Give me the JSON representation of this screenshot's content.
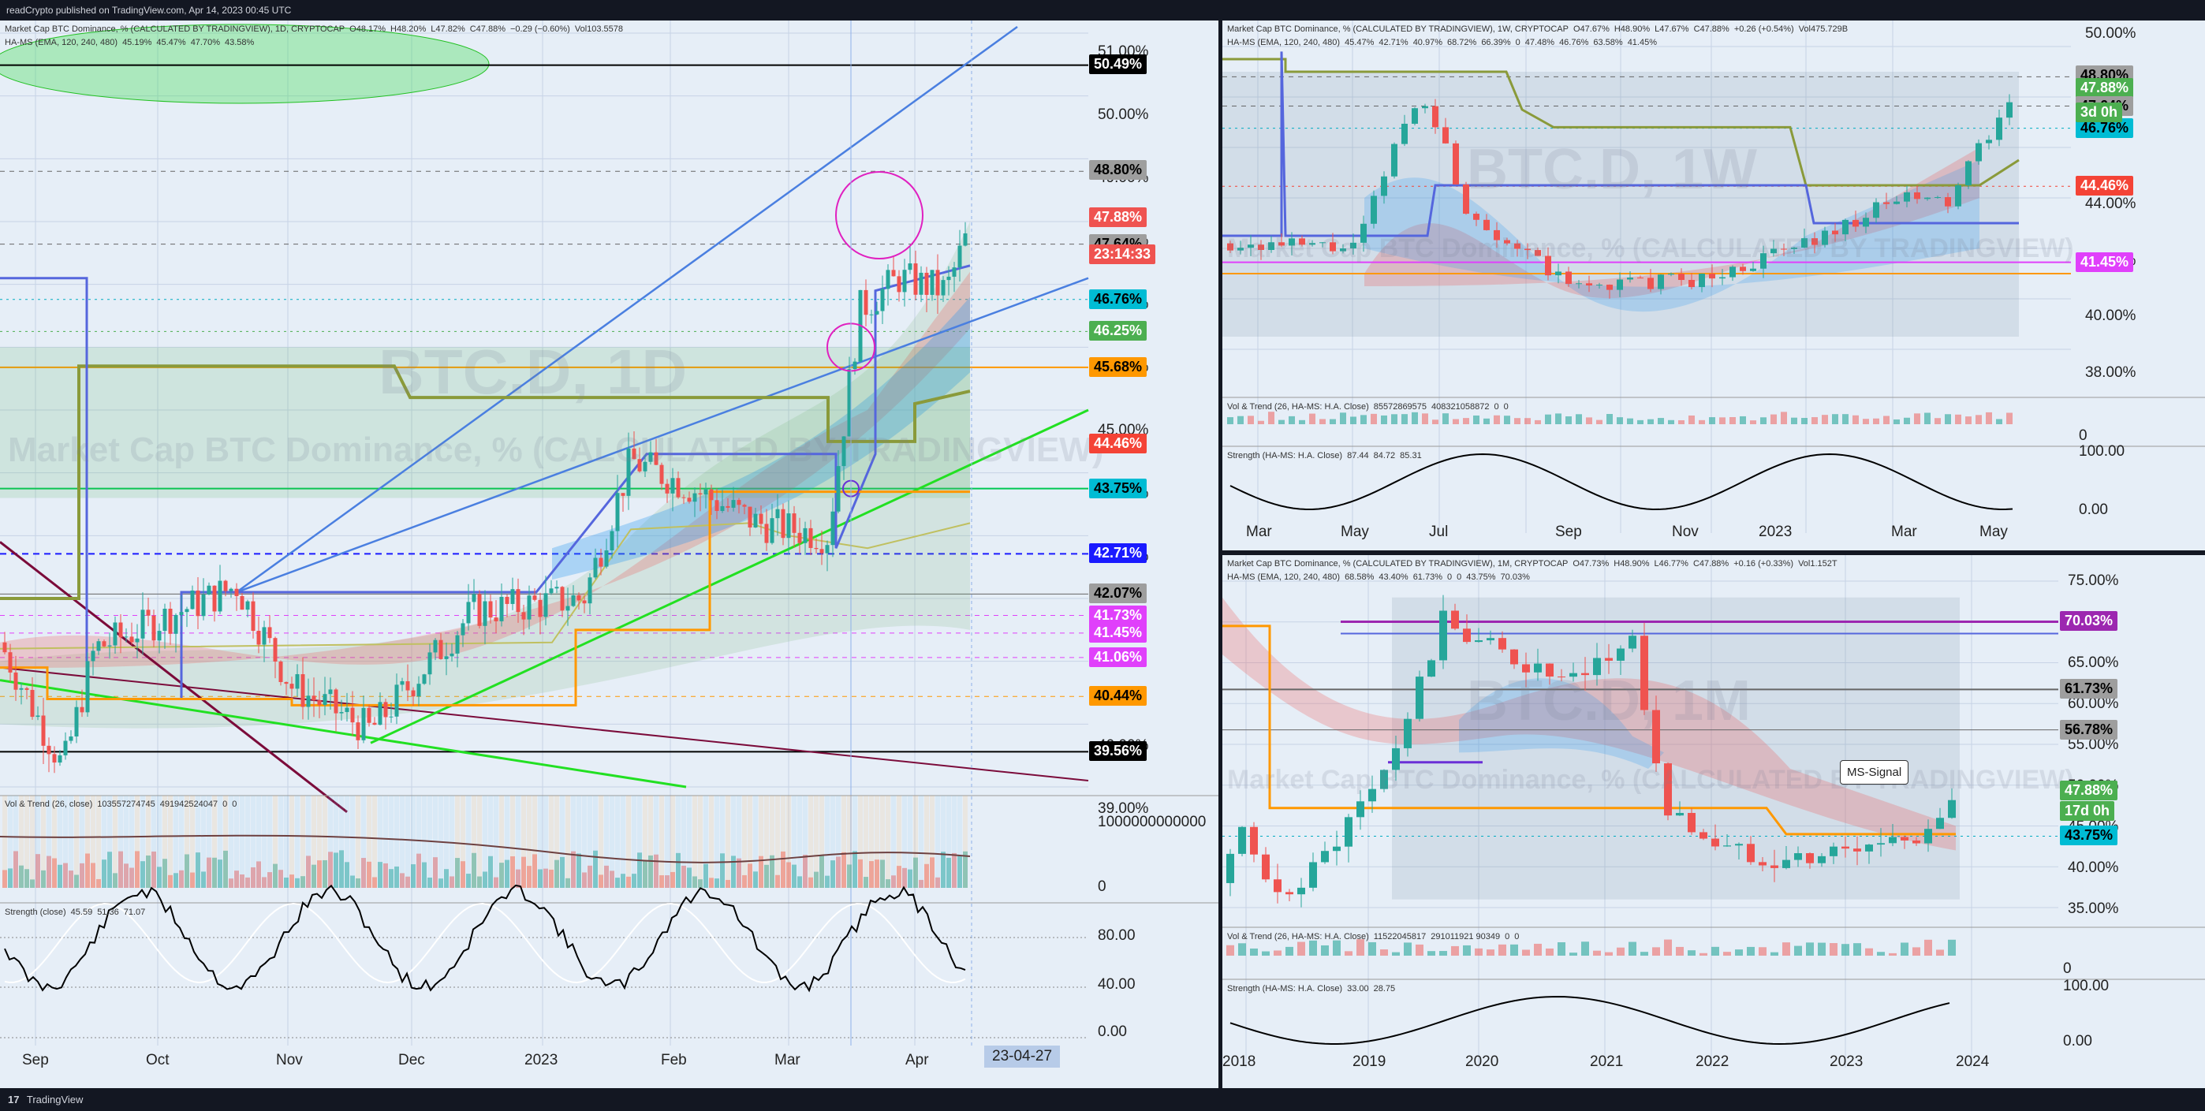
{
  "header": {
    "text": "readCrypto published on TradingView.com, Apr 14, 2023 00:45 UTC"
  },
  "footer": {
    "brand": "TradingView",
    "logo": "17"
  },
  "colors": {
    "bg": "#e6eef7",
    "grid": "#c7d3e6",
    "up": "#26a69a",
    "down": "#ef5350",
    "blue": "#4a7fe0",
    "green": "#22e022",
    "orange": "#ff9800",
    "olive": "#8a9a3a",
    "magenta": "#e040fb",
    "maroon": "#7b0b3a",
    "purple": "#6a2fd6"
  },
  "daily": {
    "legend1": [
      "Market Cap BTC Dominance, % (CALCULATED BY TRADINGVIEW), 1D, CRYPTOCAP",
      "O48.17%",
      "H48.20%",
      "L47.82%",
      "C47.88%",
      "−0.29 (−0.60%)",
      "Vol103.5578"
    ],
    "legend2": [
      "HA-MS (EMA, 120, 240, 480)",
      "45.19%",
      "45.47%",
      "47.70%",
      "43.58%"
    ],
    "watermark": "BTC.D, 1D",
    "watermark2": "Market Cap BTC Dominance, % (CALCULATED BY TRADINGVIEW)",
    "y_ticks": [
      "51.00%",
      "50.00%",
      "49.00%",
      "48.00%",
      "47.00%",
      "46.00%",
      "45.00%",
      "44.00%",
      "43.00%",
      "40.00%",
      "39.00%"
    ],
    "x_ticks": [
      "Sep",
      "Oct",
      "Nov",
      "Dec",
      "2023",
      "Feb",
      "Mar",
      "Apr"
    ],
    "date_tag": "23-04-27",
    "countdown": "23:14:33",
    "price_tags": [
      {
        "label": "50.49%",
        "bg": "#000000",
        "fg": "#ffffff"
      },
      {
        "label": "48.80%",
        "bg": "#9e9e9e",
        "fg": "#000000"
      },
      {
        "label": "47.88%",
        "bg": "#ef5350",
        "fg": "#ffffff"
      },
      {
        "label": "47.64%",
        "bg": "#9e9e9e",
        "fg": "#000000"
      },
      {
        "label": "46.76%",
        "bg": "#00bcd4",
        "fg": "#000000"
      },
      {
        "label": "46.25%",
        "bg": "#4caf50",
        "fg": "#ffffff"
      },
      {
        "label": "45.68%",
        "bg": "#ff9800",
        "fg": "#000000"
      },
      {
        "label": "44.46%",
        "bg": "#f44336",
        "fg": "#ffffff"
      },
      {
        "label": "43.75%",
        "bg": "#00bcd4",
        "fg": "#000000"
      },
      {
        "label": "42.71%",
        "bg": "#1a1aff",
        "fg": "#ffffff"
      },
      {
        "label": "42.07%",
        "bg": "#9e9e9e",
        "fg": "#000000"
      },
      {
        "label": "41.73%",
        "bg": "#e040fb",
        "fg": "#ffffff"
      },
      {
        "label": "41.45%",
        "bg": "#e040fb",
        "fg": "#ffffff"
      },
      {
        "label": "41.06%",
        "bg": "#e040fb",
        "fg": "#ffffff"
      },
      {
        "label": "40.44%",
        "bg": "#ff9800",
        "fg": "#000000"
      },
      {
        "label": "39.56%",
        "bg": "#000000",
        "fg": "#ffffff"
      }
    ],
    "vol_legend": [
      "Vol & Trend (26, close)",
      "103557274745",
      "491942524047",
      "0",
      "0"
    ],
    "vol_ticks": [
      "1000000000000",
      "0"
    ],
    "str_legend": [
      "Strength (close)",
      "45.59",
      "51.36",
      "71.07"
    ],
    "str_ticks": [
      "80.00",
      "40.00",
      "0.00"
    ]
  },
  "weekly": {
    "legend1": [
      "Market Cap BTC Dominance, % (CALCULATED BY TRADINGVIEW), 1W, CRYPTOCAP",
      "O47.67%",
      "H48.90%",
      "L47.67%",
      "C47.88%",
      "+0.26 (+0.54%)",
      "Vol475.729B"
    ],
    "legend2": [
      "HA-MS (EMA, 120, 240, 480)",
      "45.47%",
      "42.71%",
      "40.97%",
      "68.72%",
      "66.39%",
      "0",
      "47.48%",
      "46.76%",
      "63.58%",
      "41.45%"
    ],
    "watermark": "BTC.D, 1W",
    "watermark2": "Market Cap BTC Dominance, % (CALCULATED BY TRADINGVIEW)",
    "y_ticks": [
      "50.00%",
      "44.00%",
      "42.00%",
      "40.00%",
      "38.00%"
    ],
    "x_ticks": [
      "Mar",
      "May",
      "Jul",
      "Sep",
      "Nov",
      "2023",
      "Mar",
      "May"
    ],
    "countdown": "3d 0h",
    "price_tags": [
      {
        "label": "48.80%",
        "bg": "#9e9e9e",
        "fg": "#000000"
      },
      {
        "label": "47.88%",
        "bg": "#4caf50",
        "fg": "#ffffff"
      },
      {
        "label": "47.64%",
        "bg": "#9e9e9e",
        "fg": "#000000"
      },
      {
        "label": "46.76%",
        "bg": "#00bcd4",
        "fg": "#000000"
      },
      {
        "label": "44.46%",
        "bg": "#f44336",
        "fg": "#ffffff"
      },
      {
        "label": "41.45%",
        "bg": "#e040fb",
        "fg": "#ffffff"
      }
    ],
    "vol_legend": [
      "Vol & Trend (26, HA-MS: H.A. Close)",
      "85572869575",
      "408321058872",
      "0",
      "0"
    ],
    "str_legend": [
      "Strength (HA-MS: H.A. Close)",
      "87.44",
      "84.72",
      "85.31"
    ],
    "str_ticks": [
      "0",
      "100.00",
      "0.00"
    ]
  },
  "monthly": {
    "legend1": [
      "Market Cap BTC Dominance, % (CALCULATED BY TRADINGVIEW), 1M, CRYPTOCAP",
      "O47.73%",
      "H48.90%",
      "L46.77%",
      "C47.88%",
      "+0.16 (+0.33%)",
      "Vol1.152T"
    ],
    "legend2": [
      "HA-MS (EMA, 120, 240, 480)",
      "68.58%",
      "43.40%",
      "61.73%",
      "0",
      "0",
      "43.75%",
      "70.03%"
    ],
    "watermark": "BTC.D, 1M",
    "watermark2": "Market Cap BTC Dominance, % (CALCULATED BY TRADINGVIEW)",
    "y_ticks": [
      "75.00%",
      "65.00%",
      "60.00%",
      "55.00%",
      "50.00%",
      "45.00%",
      "40.00%",
      "35.00%"
    ],
    "x_ticks": [
      "2018",
      "2019",
      "2020",
      "2021",
      "2022",
      "2023",
      "2024"
    ],
    "countdown": "17d 0h",
    "callout": "MS-Signal",
    "price_tags": [
      {
        "label": "70.03%",
        "bg": "#9c27b0",
        "fg": "#ffffff"
      },
      {
        "label": "61.73%",
        "bg": "#9e9e9e",
        "fg": "#000000"
      },
      {
        "label": "56.78%",
        "bg": "#9e9e9e",
        "fg": "#000000"
      },
      {
        "label": "47.88%",
        "bg": "#4caf50",
        "fg": "#ffffff"
      },
      {
        "label": "43.75%",
        "bg": "#00bcd4",
        "fg": "#000000"
      }
    ],
    "vol_legend": [
      "Vol & Trend (26, HA-MS: H.A. Close)",
      "11522045817",
      "291011921 90349",
      "0",
      "0"
    ],
    "str_legend": [
      "Strength (HA-MS: H.A. Close)",
      "33.00",
      "28.75"
    ],
    "str_ticks": [
      "0",
      "100.00",
      "0.00"
    ]
  },
  "chart_data": [
    {
      "type": "line",
      "title": "BTC.D, 1D",
      "x": [
        "Sep",
        "Oct",
        "Nov",
        "Dec",
        "2023",
        "Feb",
        "Mar",
        "Apr"
      ],
      "series": [
        {
          "values": [
            40.2,
            41.1,
            40.0,
            39.8,
            41.2,
            44.3,
            43.7,
            47.9
          ]
        }
      ],
      "ylim": [
        39.0,
        51.0
      ]
    },
    {
      "type": "line",
      "title": "BTC.D, 1W",
      "x": [
        "Mar",
        "May",
        "Jul",
        "Sep",
        "Nov",
        "2023",
        "Mar",
        "May"
      ],
      "series": [
        {
          "values": [
            42.0,
            45.0,
            43.5,
            40.5,
            40.8,
            41.5,
            45.0,
            47.9
          ]
        }
      ],
      "ylim": [
        38.0,
        50.0
      ]
    },
    {
      "type": "line",
      "title": "BTC.D, 1M",
      "x": [
        "2018",
        "2019",
        "2020",
        "2021",
        "2022",
        "2023",
        "2024"
      ],
      "series": [
        {
          "values": [
            38.0,
            55.0,
            68.0,
            40.0,
            42.0,
            43.5,
            47.9
          ]
        }
      ],
      "ylim": [
        35.0,
        75.0
      ]
    }
  ]
}
